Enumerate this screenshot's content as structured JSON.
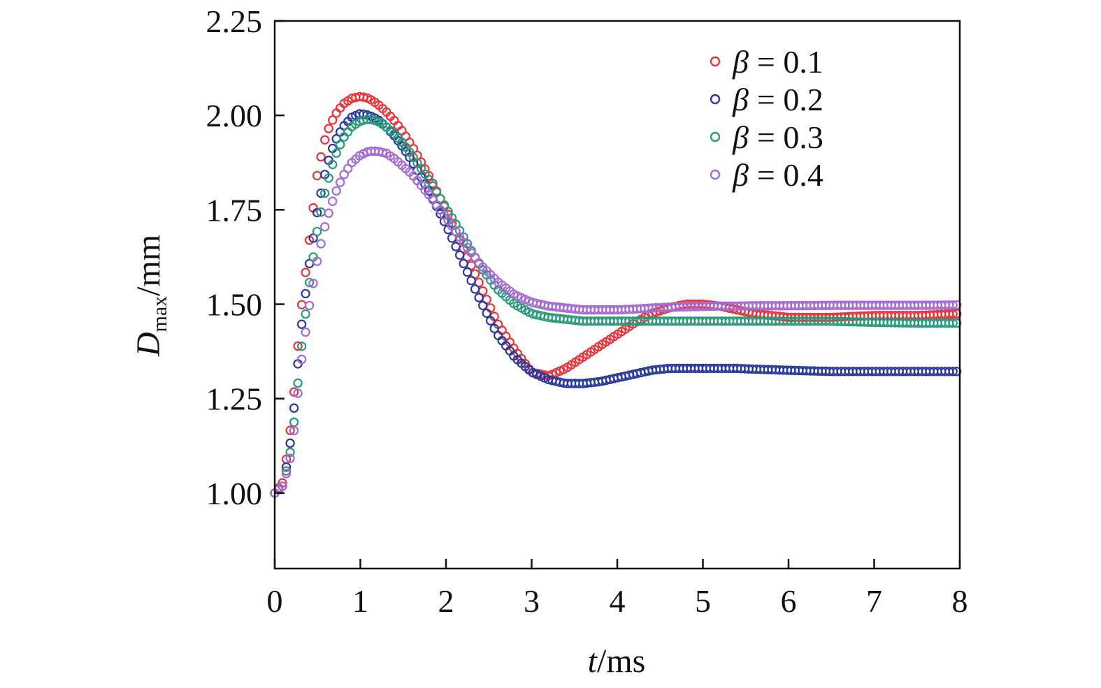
{
  "chart_data": {
    "type": "scatter",
    "xlabel_var": "t",
    "xlabel_unit": "/ms",
    "ylabel_var": "D",
    "ylabel_sub": "max",
    "ylabel_unit": "/mm",
    "xlim": [
      0,
      8
    ],
    "ylim": [
      0.8,
      2.25
    ],
    "xticks": [
      0,
      1,
      2,
      3,
      4,
      5,
      6,
      7,
      8
    ],
    "xtick_labels": [
      "0",
      "1",
      "2",
      "3",
      "4",
      "5",
      "6",
      "7",
      "8"
    ],
    "yticks": [
      1.0,
      1.25,
      1.5,
      1.75,
      2.0,
      2.25
    ],
    "ytick_labels": [
      "1.00",
      "1.25",
      "1.50",
      "1.75",
      "2.00",
      "2.25"
    ],
    "grid": false,
    "legend_position": "top-right",
    "legend_symbol": "β",
    "series": [
      {
        "name": "β = 0.1",
        "legend_value": "= 0.1",
        "color": "#e8353b",
        "x": [
          0,
          0.1,
          0.2,
          0.3,
          0.4,
          0.5,
          0.6,
          0.7,
          0.8,
          0.9,
          1.0,
          1.1,
          1.2,
          1.3,
          1.4,
          1.5,
          1.6,
          1.8,
          2.0,
          2.2,
          2.4,
          2.6,
          2.8,
          3.0,
          3.2,
          3.4,
          3.6,
          3.8,
          4.0,
          4.2,
          4.4,
          4.6,
          4.8,
          5.0,
          5.2,
          5.4,
          5.6,
          6.0,
          6.5,
          7.0,
          7.5,
          8.0
        ],
        "y": [
          1.0,
          1.03,
          1.2,
          1.47,
          1.66,
          1.85,
          1.95,
          2.0,
          2.03,
          2.045,
          2.05,
          2.045,
          2.03,
          2.01,
          1.985,
          1.955,
          1.92,
          1.84,
          1.75,
          1.65,
          1.55,
          1.45,
          1.38,
          1.32,
          1.31,
          1.33,
          1.36,
          1.39,
          1.42,
          1.45,
          1.475,
          1.49,
          1.5,
          1.5,
          1.495,
          1.485,
          1.475,
          1.465,
          1.465,
          1.47,
          1.47,
          1.475
        ]
      },
      {
        "name": "β = 0.2",
        "legend_value": "= 0.2",
        "color": "#2a3a9a",
        "x": [
          0,
          0.1,
          0.2,
          0.3,
          0.4,
          0.5,
          0.6,
          0.7,
          0.8,
          0.9,
          1.0,
          1.1,
          1.2,
          1.3,
          1.4,
          1.5,
          1.6,
          1.8,
          2.0,
          2.2,
          2.4,
          2.6,
          2.8,
          3.0,
          3.2,
          3.4,
          3.6,
          3.8,
          4.0,
          4.2,
          4.4,
          4.6,
          4.8,
          5.0,
          5.2,
          5.4,
          5.6,
          6.0,
          6.5,
          7.0,
          7.5,
          8.0
        ],
        "y": [
          1.0,
          1.02,
          1.16,
          1.42,
          1.6,
          1.75,
          1.86,
          1.93,
          1.97,
          1.995,
          2.005,
          2.0,
          1.99,
          1.97,
          1.945,
          1.915,
          1.88,
          1.8,
          1.71,
          1.61,
          1.51,
          1.42,
          1.36,
          1.32,
          1.3,
          1.29,
          1.29,
          1.295,
          1.305,
          1.315,
          1.325,
          1.33,
          1.33,
          1.33,
          1.33,
          1.33,
          1.328,
          1.325,
          1.322,
          1.322,
          1.322,
          1.322
        ]
      },
      {
        "name": "β = 0.3",
        "legend_value": "= 0.3",
        "color": "#2b9a7a",
        "x": [
          0,
          0.1,
          0.2,
          0.3,
          0.4,
          0.5,
          0.6,
          0.7,
          0.8,
          0.9,
          1.0,
          1.1,
          1.2,
          1.3,
          1.4,
          1.5,
          1.6,
          1.8,
          2.0,
          2.2,
          2.4,
          2.6,
          2.8,
          3.0,
          3.2,
          3.4,
          3.6,
          3.8,
          4.0,
          4.2,
          4.4,
          4.6,
          4.8,
          5.0,
          5.2,
          5.4,
          5.6,
          6.0,
          6.5,
          7.0,
          7.5,
          8.0
        ],
        "y": [
          1.0,
          1.02,
          1.13,
          1.36,
          1.55,
          1.7,
          1.81,
          1.89,
          1.94,
          1.97,
          1.985,
          1.99,
          1.985,
          1.97,
          1.95,
          1.925,
          1.895,
          1.83,
          1.755,
          1.68,
          1.6,
          1.54,
          1.5,
          1.475,
          1.465,
          1.46,
          1.455,
          1.455,
          1.455,
          1.455,
          1.455,
          1.455,
          1.455,
          1.455,
          1.455,
          1.455,
          1.455,
          1.455,
          1.455,
          1.452,
          1.45,
          1.45
        ]
      },
      {
        "name": "β = 0.4",
        "legend_value": "= 0.4",
        "color": "#a46bd0",
        "x": [
          0,
          0.1,
          0.2,
          0.3,
          0.4,
          0.5,
          0.6,
          0.7,
          0.8,
          0.9,
          1.0,
          1.1,
          1.2,
          1.3,
          1.4,
          1.5,
          1.6,
          1.8,
          2.0,
          2.2,
          2.4,
          2.6,
          2.8,
          3.0,
          3.2,
          3.4,
          3.6,
          3.8,
          4.0,
          4.2,
          4.4,
          4.6,
          4.8,
          5.0,
          5.2,
          5.4,
          5.6,
          6.0,
          6.5,
          7.0,
          7.5,
          8.0
        ],
        "y": [
          1.0,
          1.02,
          1.11,
          1.33,
          1.49,
          1.62,
          1.72,
          1.79,
          1.84,
          1.875,
          1.895,
          1.905,
          1.905,
          1.9,
          1.885,
          1.865,
          1.845,
          1.79,
          1.73,
          1.665,
          1.605,
          1.56,
          1.525,
          1.505,
          1.495,
          1.49,
          1.485,
          1.485,
          1.485,
          1.487,
          1.49,
          1.492,
          1.493,
          1.494,
          1.495,
          1.495,
          1.496,
          1.496,
          1.497,
          1.497,
          1.497,
          1.498
        ]
      }
    ]
  }
}
